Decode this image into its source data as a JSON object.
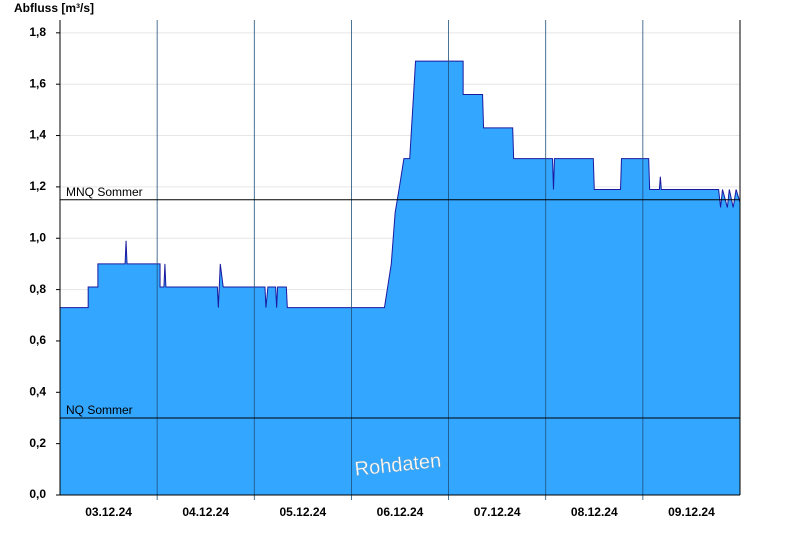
{
  "chart_data": {
    "type": "area",
    "y_label": "Abfluss [m³/s]",
    "watermark": "Rohdaten",
    "color": "#33a6ff",
    "line_color": "#1a1aa0",
    "xlim": [
      0,
      7
    ],
    "ylim": [
      0,
      1.85
    ],
    "xticks": [
      {
        "value": 0.5,
        "label": "03.12.24"
      },
      {
        "value": 1.5,
        "label": "04.12.24"
      },
      {
        "value": 2.5,
        "label": "05.12.24"
      },
      {
        "value": 3.5,
        "label": "06.12.24"
      },
      {
        "value": 4.5,
        "label": "07.12.24"
      },
      {
        "value": 5.5,
        "label": "08.12.24"
      },
      {
        "value": 6.5,
        "label": "09.12.24"
      }
    ],
    "day_lines": [
      1,
      2,
      3,
      4,
      5,
      6
    ],
    "yticks": [
      {
        "value": 0,
        "label": "0,0"
      },
      {
        "value": 0.2,
        "label": "0,2"
      },
      {
        "value": 0.4,
        "label": "0,4"
      },
      {
        "value": 0.6,
        "label": "0,6"
      },
      {
        "value": 0.8,
        "label": "0,8"
      },
      {
        "value": 1.0,
        "label": "1,0"
      },
      {
        "value": 1.2,
        "label": "1,2"
      },
      {
        "value": 1.4,
        "label": "1,4"
      },
      {
        "value": 1.6,
        "label": "1,6"
      },
      {
        "value": 1.8,
        "label": "1,8"
      }
    ],
    "grid": true,
    "x": [
      0,
      0.29,
      0.29,
      0.39,
      0.39,
      0.67,
      0.68,
      0.69,
      1.03,
      1.03,
      1.07,
      1.08,
      1.09,
      1.62,
      1.63,
      1.65,
      1.68,
      2.11,
      2.12,
      2.14,
      2.22,
      2.23,
      2.24,
      2.33,
      2.34,
      3.34,
      3.41,
      3.45,
      3.49,
      3.54,
      3.6,
      3.66,
      4.15,
      4.15,
      4.35,
      4.36,
      4.42,
      4.66,
      4.67,
      5.07,
      5.08,
      5.09,
      5.49,
      5.5,
      5.77,
      5.78,
      6.06,
      6.07,
      6.17,
      6.18,
      6.19,
      6.78,
      6.8,
      6.82,
      6.87,
      6.89,
      6.93,
      6.96,
      7
    ],
    "values": [
      0.73,
      0.73,
      0.81,
      0.81,
      0.9,
      0.9,
      0.99,
      0.9,
      0.9,
      0.81,
      0.81,
      0.9,
      0.81,
      0.81,
      0.73,
      0.9,
      0.81,
      0.81,
      0.73,
      0.81,
      0.81,
      0.73,
      0.81,
      0.81,
      0.73,
      0.73,
      0.9,
      1.1,
      1.19,
      1.31,
      1.31,
      1.69,
      1.69,
      1.56,
      1.56,
      1.43,
      1.43,
      1.43,
      1.31,
      1.31,
      1.19,
      1.31,
      1.31,
      1.19,
      1.19,
      1.31,
      1.31,
      1.19,
      1.19,
      1.24,
      1.19,
      1.19,
      1.12,
      1.19,
      1.12,
      1.19,
      1.12,
      1.19,
      1.14
    ],
    "hlines": [
      {
        "value": 1.15,
        "label": "MNQ Sommer"
      },
      {
        "value": 0.3,
        "label": "NQ Sommer"
      }
    ]
  }
}
